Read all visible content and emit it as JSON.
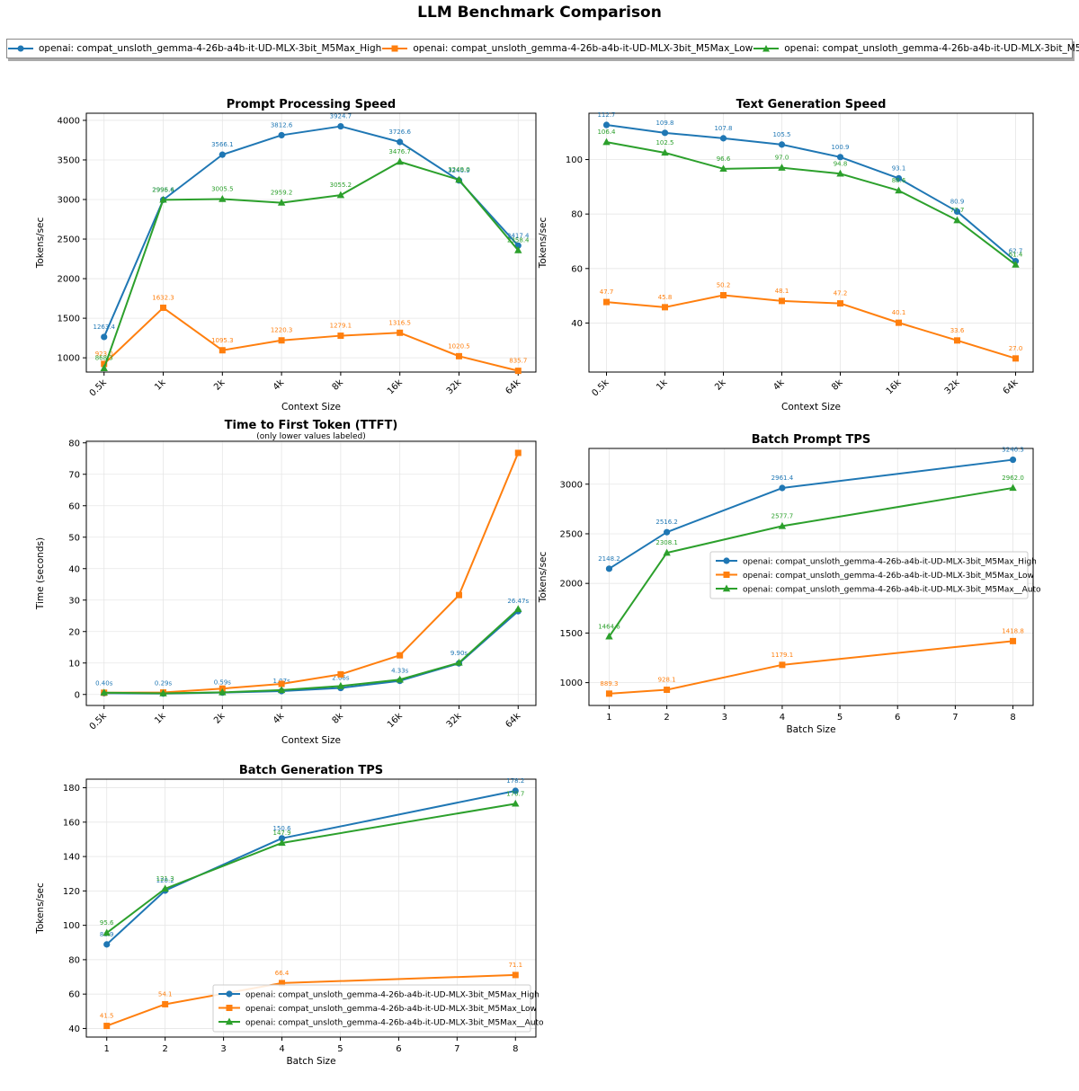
{
  "figure_title": "LLM Benchmark Comparison",
  "series_names": [
    "openai: compat_unsloth_gemma-4-26b-a4b-it-UD-MLX-3bit_M5Max_High",
    "openai: compat_unsloth_gemma-4-26b-a4b-it-UD-MLX-3bit_M5Max_Low",
    "openai: compat_unsloth_gemma-4-26b-a4b-it-UD-MLX-3bit_M5Max__Auto"
  ],
  "colors": [
    "#1f77b4",
    "#ff7f0e",
    "#2ca02c"
  ],
  "markers": [
    "circle",
    "square",
    "triangle"
  ],
  "chart_data": [
    {
      "id": "pp",
      "type": "line",
      "title": "Prompt Processing Speed",
      "subtitle": "",
      "xlabel": "Context Size",
      "ylabel": "Tokens/sec",
      "categories": [
        "0.5k",
        "1k",
        "2k",
        "4k",
        "8k",
        "16k",
        "32k",
        "64k"
      ],
      "xlim": [
        -0.3,
        7.3
      ],
      "ylim": [
        820,
        4090
      ],
      "yticks": [
        1000,
        1500,
        2000,
        2500,
        3000,
        3500,
        4000
      ],
      "xtick_rotation": 45,
      "legend": "none",
      "series": [
        {
          "name": "openai: compat_unsloth_gemma-4-26b-a4b-it-UD-MLX-3bit_M5Max_High",
          "values": [
            1263.4,
            2995.6,
            3566.1,
            3812.6,
            3924.7,
            3726.6,
            3240.9,
            2417.4
          ],
          "labels": [
            "1263.4",
            "2995.6",
            "3566.1",
            "3812.6",
            "3924.7",
            "3726.6",
            "3240.9",
            "2417.4"
          ]
        },
        {
          "name": "openai: compat_unsloth_gemma-4-26b-a4b-it-UD-MLX-3bit_M5Max_Low",
          "values": [
            923.0,
            1632.3,
            1095.3,
            1220.3,
            1279.1,
            1316.5,
            1020.5,
            835.7
          ],
          "labels": [
            "923.0",
            "1632.3",
            "1095.3",
            "1220.3",
            "1279.1",
            "1316.5",
            "1020.5",
            "835.7"
          ]
        },
        {
          "name": "openai: compat_unsloth_gemma-4-26b-a4b-it-UD-MLX-3bit_M5Max__Auto",
          "values": [
            868.3,
            2996.4,
            3005.5,
            2959.2,
            3055.2,
            3476.7,
            3249.0,
            2358.4
          ],
          "labels": [
            "868.3",
            "2996.4",
            "3005.5",
            "2959.2",
            "3055.2",
            "3476.7",
            "3249.0",
            "2358.4"
          ]
        }
      ]
    },
    {
      "id": "tg",
      "type": "line",
      "title": "Text Generation Speed",
      "subtitle": "",
      "xlabel": "Context Size",
      "ylabel": "Tokens/sec",
      "categories": [
        "0.5k",
        "1k",
        "2k",
        "4k",
        "8k",
        "16k",
        "32k",
        "64k"
      ],
      "xlim": [
        -0.3,
        7.3
      ],
      "ylim": [
        22,
        117
      ],
      "yticks": [
        40,
        60,
        80,
        100
      ],
      "xtick_rotation": 45,
      "legend": "none",
      "series": [
        {
          "name": "openai: compat_unsloth_gemma-4-26b-a4b-it-UD-MLX-3bit_M5Max_High",
          "values": [
            112.7,
            109.8,
            107.8,
            105.5,
            100.9,
            93.1,
            80.9,
            62.7
          ],
          "labels": [
            "112.7",
            "109.8",
            "107.8",
            "105.5",
            "100.9",
            "93.1",
            "80.9",
            "62.7"
          ]
        },
        {
          "name": "openai: compat_unsloth_gemma-4-26b-a4b-it-UD-MLX-3bit_M5Max_Low",
          "values": [
            47.7,
            45.8,
            50.2,
            48.1,
            47.2,
            40.1,
            33.6,
            27.0
          ],
          "labels": [
            "47.7",
            "45.8",
            "50.2",
            "48.1",
            "47.2",
            "40.1",
            "33.6",
            "27.0"
          ]
        },
        {
          "name": "openai: compat_unsloth_gemma-4-26b-a4b-it-UD-MLX-3bit_M5Max__Auto",
          "values": [
            106.4,
            102.5,
            96.6,
            97.0,
            94.8,
            88.6,
            77.7,
            61.4
          ],
          "labels": [
            "106.4",
            "102.5",
            "96.6",
            "97.0",
            "94.8",
            "88.6",
            "77.7",
            "61.4"
          ]
        }
      ]
    },
    {
      "id": "ttft",
      "type": "line",
      "title": "Time to First Token (TTFT)",
      "subtitle": "(only lower values labeled)",
      "xlabel": "Context Size",
      "ylabel": "Time (seconds)",
      "categories": [
        "0.5k",
        "1k",
        "2k",
        "4k",
        "8k",
        "16k",
        "32k",
        "64k"
      ],
      "xlim": [
        -0.3,
        7.3
      ],
      "ylim": [
        -3.5,
        80.5
      ],
      "yticks": [
        0,
        10,
        20,
        30,
        40,
        50,
        60,
        70,
        80
      ],
      "xtick_rotation": 45,
      "legend": "none",
      "series": [
        {
          "name": "openai: compat_unsloth_gemma-4-26b-a4b-it-UD-MLX-3bit_M5Max_High",
          "values": [
            0.4,
            0.29,
            0.59,
            1.07,
            2.06,
            4.33,
            9.9,
            26.47
          ],
          "labels": [
            "0.40s",
            "0.29s",
            "0.59s",
            "1.07s",
            "2.06s",
            "4.33s",
            "9.90s",
            "26.47s"
          ]
        },
        {
          "name": "openai: compat_unsloth_gemma-4-26b-a4b-it-UD-MLX-3bit_M5Max_Low",
          "values": [
            0.55,
            0.63,
            1.87,
            3.36,
            6.4,
            12.44,
            31.6,
            76.8
          ],
          "labels": []
        },
        {
          "name": "openai: compat_unsloth_gemma-4-26b-a4b-it-UD-MLX-3bit_M5Max__Auto",
          "values": [
            0.58,
            0.34,
            0.68,
            1.38,
            2.68,
            4.71,
            10.08,
            27.13
          ],
          "labels": []
        }
      ]
    },
    {
      "id": "bp",
      "type": "line",
      "title": "Batch Prompt TPS",
      "subtitle": "",
      "xlabel": "Batch Size",
      "ylabel": "Tokens/sec",
      "x": [
        1,
        2,
        4,
        8
      ],
      "xticks": [
        1,
        2,
        3,
        4,
        5,
        6,
        7,
        8
      ],
      "xlim": [
        0.65,
        8.35
      ],
      "ylim": [
        770,
        3360
      ],
      "yticks": [
        1000,
        1500,
        2000,
        2500,
        3000
      ],
      "xtick_rotation": 0,
      "legend": "center-right",
      "series": [
        {
          "name": "openai: compat_unsloth_gemma-4-26b-a4b-it-UD-MLX-3bit_M5Max_High",
          "values": [
            2148.2,
            2516.2,
            2961.4,
            3246.3
          ],
          "labels": [
            "2148.2",
            "2516.2",
            "2961.4",
            "3246.3"
          ]
        },
        {
          "name": "openai: compat_unsloth_gemma-4-26b-a4b-it-UD-MLX-3bit_M5Max_Low",
          "values": [
            889.3,
            928.1,
            1179.1,
            1418.8
          ],
          "labels": [
            "889.3",
            "928.1",
            "1179.1",
            "1418.8"
          ]
        },
        {
          "name": "openai: compat_unsloth_gemma-4-26b-a4b-it-UD-MLX-3bit_M5Max__Auto",
          "values": [
            1464.6,
            2308.1,
            2577.7,
            2962.0
          ],
          "labels": [
            "1464.6",
            "2308.1",
            "2577.7",
            "2962.0"
          ]
        }
      ]
    },
    {
      "id": "bg",
      "type": "line",
      "title": "Batch Generation TPS",
      "subtitle": "",
      "xlabel": "Batch Size",
      "ylabel": "Tokens/sec",
      "x": [
        1,
        2,
        4,
        8
      ],
      "xticks": [
        1,
        2,
        3,
        4,
        5,
        6,
        7,
        8
      ],
      "xlim": [
        0.65,
        8.35
      ],
      "ylim": [
        35,
        185
      ],
      "yticks": [
        40,
        60,
        80,
        100,
        120,
        140,
        160,
        180
      ],
      "xtick_rotation": 0,
      "legend": "lower-right",
      "series": [
        {
          "name": "openai: compat_unsloth_gemma-4-26b-a4b-it-UD-MLX-3bit_M5Max_High",
          "values": [
            88.9,
            120.2,
            150.6,
            178.2
          ],
          "labels": [
            "88.9",
            "120.2",
            "150.6",
            "178.2"
          ]
        },
        {
          "name": "openai: compat_unsloth_gemma-4-26b-a4b-it-UD-MLX-3bit_M5Max_Low",
          "values": [
            41.5,
            54.1,
            66.4,
            71.1
          ],
          "labels": [
            "41.5",
            "54.1",
            "66.4",
            "71.1"
          ]
        },
        {
          "name": "openai: compat_unsloth_gemma-4-26b-a4b-it-UD-MLX-3bit_M5Max__Auto",
          "values": [
            95.6,
            121.3,
            147.9,
            170.7
          ],
          "labels": [
            "95.6",
            "121.3",
            "147.9",
            "170.7"
          ]
        }
      ]
    }
  ]
}
